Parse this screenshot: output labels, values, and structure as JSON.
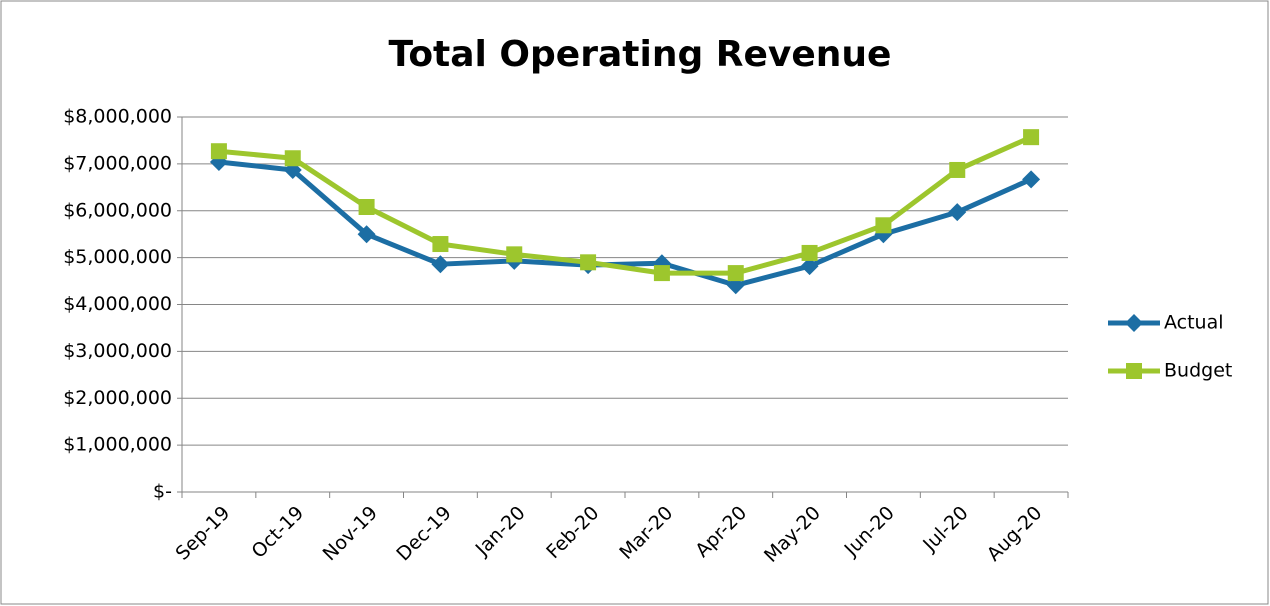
{
  "chart_data": {
    "type": "line",
    "title": "Total Operating Revenue",
    "categories": [
      "Sep-19",
      "Oct-19",
      "Nov-19",
      "Dec-19",
      "Jan-20",
      "Feb-20",
      "Mar-20",
      "Apr-20",
      "May-20",
      "Jun-20",
      "Jul-20",
      "Aug-20"
    ],
    "series": [
      {
        "name": "Actual",
        "color": "#1c6ea4",
        "marker": "diamond",
        "values": [
          7040000,
          6870000,
          5500000,
          4860000,
          4930000,
          4840000,
          4880000,
          4410000,
          4820000,
          5500000,
          5970000,
          6670000
        ]
      },
      {
        "name": "Budget",
        "color": "#9dc62d",
        "marker": "square",
        "values": [
          7270000,
          7120000,
          6080000,
          5290000,
          5070000,
          4900000,
          4670000,
          4670000,
          5100000,
          5690000,
          6870000,
          7570000
        ]
      }
    ],
    "ylim": [
      0,
      8000000
    ],
    "yticks": [
      {
        "value": 0,
        "label": "$-"
      },
      {
        "value": 1000000,
        "label": "$1,000,000"
      },
      {
        "value": 2000000,
        "label": "$2,000,000"
      },
      {
        "value": 3000000,
        "label": "$3,000,000"
      },
      {
        "value": 4000000,
        "label": "$4,000,000"
      },
      {
        "value": 5000000,
        "label": "$5,000,000"
      },
      {
        "value": 6000000,
        "label": "$6,000,000"
      },
      {
        "value": 7000000,
        "label": "$7,000,000"
      },
      {
        "value": 8000000,
        "label": "$8,000,000"
      }
    ],
    "grid": true,
    "legend": "right"
  }
}
